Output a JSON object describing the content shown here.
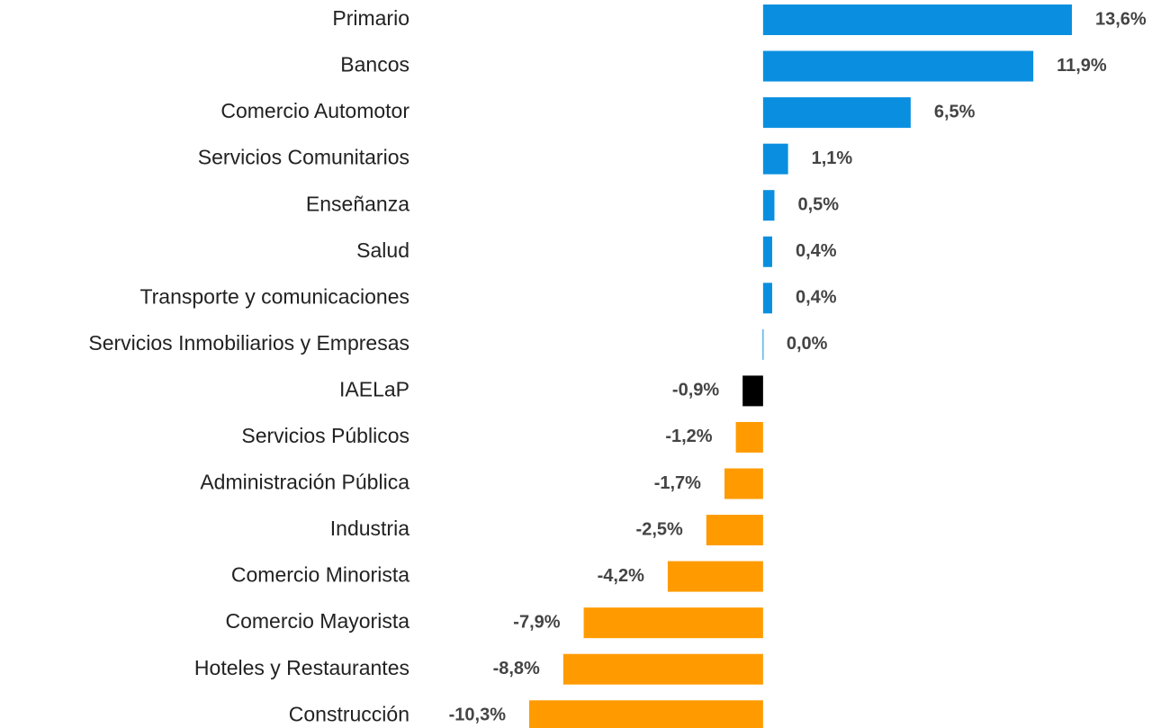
{
  "chart_data": {
    "type": "bar",
    "orientation": "horizontal",
    "categories": [
      "Primario",
      "Bancos",
      "Comercio Automotor",
      "Servicios Comunitarios",
      "Enseñanza",
      "Salud",
      "Transporte y comunicaciones",
      "Servicios Inmobiliarios y Empresas",
      "IAELaP",
      "Servicios Públicos",
      "Administración Pública",
      "Industria",
      "Comercio Minorista",
      "Comercio Mayorista",
      "Hoteles y Restaurantes",
      "Construcción"
    ],
    "values": [
      13.6,
      11.9,
      6.5,
      1.1,
      0.5,
      0.4,
      0.4,
      0.0,
      -0.9,
      -1.2,
      -1.7,
      -2.5,
      -4.2,
      -7.9,
      -8.8,
      -10.3
    ],
    "value_labels": [
      "13,6%",
      "11,9%",
      "6,5%",
      "1,1%",
      "0,5%",
      "0,4%",
      "0,4%",
      "0,0%",
      "-0,9%",
      "-1,2%",
      "-1,7%",
      "-2,5%",
      "-4,2%",
      "-7,9%",
      "-8,8%",
      "-10,3%"
    ],
    "colors": [
      "#0a8fe0",
      "#0a8fe0",
      "#0a8fe0",
      "#0a8fe0",
      "#0a8fe0",
      "#0a8fe0",
      "#0a8fe0",
      "#0a8fe0",
      "#000000",
      "#ff9b00",
      "#ff9b00",
      "#ff9b00",
      "#ff9b00",
      "#ff9b00",
      "#ff9b00",
      "#ff9b00"
    ]
  }
}
